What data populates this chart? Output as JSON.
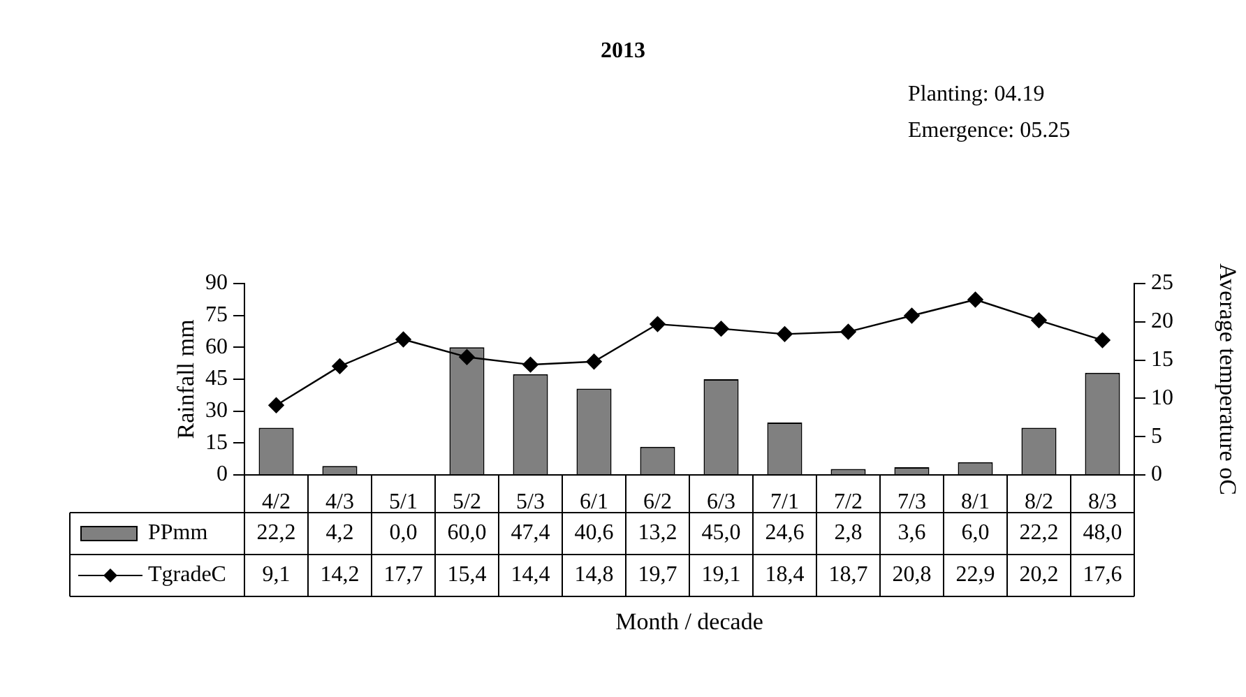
{
  "chart_data": {
    "type": "bar",
    "title": "2013",
    "annotations": [
      "Planting: 04.19",
      "Emergence: 05.25"
    ],
    "xlabel": "Month / decade",
    "ylabel": "Rainfall mm",
    "y2label": "Average temperature oC",
    "categories": [
      "4/2",
      "4/3",
      "5/1",
      "5/2",
      "5/3",
      "6/1",
      "6/2",
      "6/3",
      "7/1",
      "7/2",
      "7/3",
      "8/1",
      "8/2",
      "8/3"
    ],
    "series": [
      {
        "name": "PPmm",
        "color": "#808080",
        "values": [
          22.2,
          4.2,
          0.0,
          60.0,
          47.4,
          40.6,
          13.2,
          45.0,
          24.6,
          2.8,
          3.6,
          6.0,
          22.2,
          48.0
        ],
        "value_labels": [
          "22,2",
          "4,2",
          "0,0",
          "60,0",
          "47,4",
          "40,6",
          "13,2",
          "45,0",
          "24,6",
          "2,8",
          "3,6",
          "6,0",
          "22,2",
          "48,0"
        ]
      },
      {
        "name": "TgradeC",
        "type": "line",
        "axis": "y2",
        "color": "#000000",
        "values": [
          9.1,
          14.2,
          17.7,
          15.4,
          14.4,
          14.8,
          19.7,
          19.1,
          18.4,
          18.7,
          20.8,
          22.9,
          20.2,
          17.6
        ],
        "value_labels": [
          "9,1",
          "14,2",
          "17,7",
          "15,4",
          "14,4",
          "14,8",
          "19,7",
          "19,1",
          "18,4",
          "18,7",
          "20,8",
          "22,9",
          "20,2",
          "17,6"
        ]
      }
    ],
    "ylim": [
      0,
      90
    ],
    "yticks": [
      0,
      15,
      30,
      45,
      60,
      75,
      90
    ],
    "y2lim": [
      0,
      25
    ],
    "y2ticks": [
      0,
      5,
      10,
      15,
      20,
      25
    ],
    "legend": "bottom",
    "marker": "diamond",
    "line_style": "solid"
  }
}
